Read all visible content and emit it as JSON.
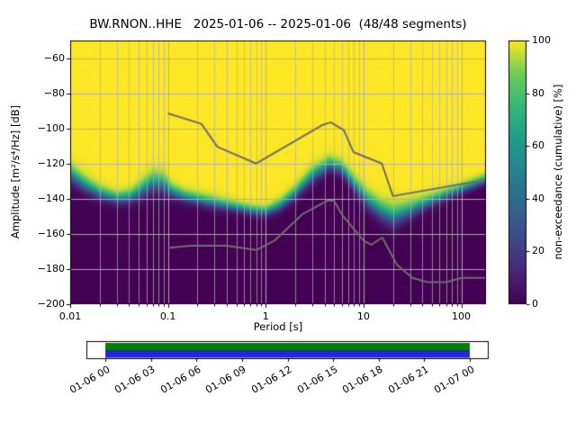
{
  "title": "BW.RNON..HHE   2025-01-06 -- 2025-01-06  (48/48 segments)",
  "station": "BW.RNON..HHE",
  "date_range": "2025-01-06 -- 2025-01-06",
  "segments": "48/48 segments",
  "axes": {
    "xlabel": "Period [s]",
    "ylabel": "Amplitude [m²/s⁴/Hz] [dB]",
    "x_ticks": [
      {
        "value": 0.01,
        "label": "0.01"
      },
      {
        "value": 0.1,
        "label": "0.1"
      },
      {
        "value": 1,
        "label": "1"
      },
      {
        "value": 10,
        "label": "10"
      },
      {
        "value": 100,
        "label": "100"
      }
    ],
    "y_ticks": [
      {
        "value": -60,
        "label": "−60"
      },
      {
        "value": -80,
        "label": "−80"
      },
      {
        "value": -100,
        "label": "−100"
      },
      {
        "value": -120,
        "label": "−120"
      },
      {
        "value": -140,
        "label": "−140"
      },
      {
        "value": -160,
        "label": "−160"
      },
      {
        "value": -180,
        "label": "−180"
      },
      {
        "value": -200,
        "label": "−200"
      }
    ]
  },
  "colorbar": {
    "label": "non-exceedance (cumulative) [%]",
    "ticks": [
      {
        "value": 0,
        "label": "0"
      },
      {
        "value": 20,
        "label": "20"
      },
      {
        "value": 40,
        "label": "40"
      },
      {
        "value": 60,
        "label": "60"
      },
      {
        "value": 80,
        "label": "80"
      },
      {
        "value": 100,
        "label": "100"
      }
    ],
    "colormap": "viridis"
  },
  "timeline": {
    "tick_labels": [
      "01-06 00",
      "01-06 03",
      "01-06 06",
      "01-06 09",
      "01-06 12",
      "01-06 15",
      "01-06 18",
      "01-06 21",
      "01-07 00"
    ],
    "bar_colors": {
      "coverage": "#008000",
      "extent": "#2525d8"
    }
  },
  "chart_data": {
    "type": "heatmap",
    "title": "BW.RNON..HHE   2025-01-06 -- 2025-01-06  (48/48 segments)",
    "xlabel": "Period [s]",
    "ylabel": "Amplitude [m^2/s^4/Hz] [dB]",
    "xscale": "log",
    "xlim": [
      0.01,
      179
    ],
    "ylim": [
      -200,
      -50
    ],
    "clim": [
      0,
      100
    ],
    "colorbar_label": "non-exceedance (cumulative) [%]",
    "grid": true,
    "grid_color": "#b0b0b0",
    "noise_model_color": "#6e6e6e",
    "distribution": {
      "comment": "PPSD cumulative distribution: median PSD level (dB) and spread per period; color = non-exceedance %",
      "periods": [
        0.01,
        0.014,
        0.02,
        0.03,
        0.042,
        0.055,
        0.07,
        0.09,
        0.11,
        0.15,
        0.22,
        0.32,
        0.5,
        0.75,
        1.0,
        1.4,
        2.0,
        3.0,
        4.5,
        6.0,
        8.0,
        11,
        15,
        20,
        28,
        40,
        60,
        90,
        130,
        179
      ],
      "median_db": [
        -126,
        -132,
        -137,
        -140,
        -139,
        -135,
        -131,
        -132,
        -136,
        -139,
        -141,
        -143,
        -145,
        -147,
        -147.5,
        -144,
        -137,
        -127,
        -120.5,
        -123,
        -132,
        -141,
        -147,
        -150.5,
        -147.5,
        -143.5,
        -139.5,
        -135.5,
        -132,
        -129
      ],
      "sigma_db": [
        4.5,
        4,
        3.5,
        3,
        3.5,
        4.5,
        5,
        5,
        3.5,
        3,
        3,
        3,
        2.5,
        2.5,
        2.5,
        3,
        3.5,
        4,
        3.5,
        3.5,
        4,
        4.5,
        5,
        5.5,
        4.5,
        3.5,
        3,
        2.5,
        2.5,
        2.5
      ]
    },
    "noise_models": {
      "nhnm": {
        "name": "Peterson NHNM (high noise model)",
        "periods": [
          0.1,
          0.22,
          0.32,
          0.8,
          3.8,
          4.6,
          6.3,
          7.9,
          15.4,
          20.0,
          179.0
        ],
        "db": [
          -91.5,
          -97.4,
          -110.5,
          -120.0,
          -98.1,
          -96.5,
          -101.0,
          -113.5,
          -120.0,
          -138.5,
          -129.2
        ]
      },
      "nlnm": {
        "name": "Peterson NLNM (low noise model)",
        "periods": [
          0.1,
          0.17,
          0.4,
          0.8,
          1.24,
          2.4,
          4.3,
          5.0,
          6.0,
          10.0,
          12.0,
          15.6,
          21.9,
          31.6,
          45.0,
          70.0,
          101.0,
          179.0
        ],
        "db": [
          -168.0,
          -166.7,
          -166.7,
          -169.2,
          -163.7,
          -148.6,
          -141.1,
          -141.1,
          -149.0,
          -163.8,
          -166.2,
          -162.1,
          -177.5,
          -185.0,
          -187.5,
          -187.5,
          -185.0,
          -185.0
        ]
      }
    },
    "viridis_stops": [
      [
        0.0,
        68,
        1,
        84
      ],
      [
        0.125,
        72,
        40,
        120
      ],
      [
        0.25,
        62,
        74,
        137
      ],
      [
        0.375,
        49,
        104,
        142
      ],
      [
        0.5,
        38,
        130,
        142
      ],
      [
        0.625,
        31,
        158,
        137
      ],
      [
        0.75,
        53,
        183,
        121
      ],
      [
        0.875,
        109,
        205,
        89
      ],
      [
        1.0,
        253,
        231,
        37
      ]
    ],
    "timeline_axis": {
      "tick_labels": [
        "01-06 00",
        "01-06 03",
        "01-06 06",
        "01-06 09",
        "01-06 12",
        "01-06 15",
        "01-06 18",
        "01-06 21",
        "01-07 00"
      ],
      "coverage_full": true
    }
  }
}
